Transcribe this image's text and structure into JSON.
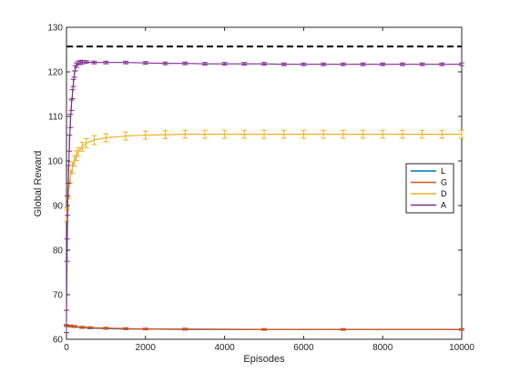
{
  "chart_data": {
    "type": "line",
    "title": "",
    "xlabel": "Episodes",
    "ylabel": "Global Reward",
    "xlim": [
      0,
      10000
    ],
    "ylim": [
      60,
      130
    ],
    "xticks": [
      0,
      2000,
      4000,
      6000,
      8000,
      10000
    ],
    "yticks": [
      60,
      70,
      80,
      90,
      100,
      110,
      120,
      130
    ],
    "grid": false,
    "legend_position": "right",
    "reference_line": {
      "y": 125.7,
      "color": "#000000",
      "style": "dashed"
    },
    "series": [
      {
        "name": "L",
        "color": "#0072BD",
        "x": [
          0,
          100,
          200,
          400,
          600,
          1000,
          1500,
          2000,
          3000,
          5000,
          7000,
          10000
        ],
        "y": [
          63.0,
          62.9,
          62.8,
          62.6,
          62.5,
          62.4,
          62.3,
          62.3,
          62.2,
          62.2,
          62.2,
          62.2
        ],
        "err": 0.15
      },
      {
        "name": "G",
        "color": "#D95319",
        "x": [
          0,
          100,
          200,
          400,
          600,
          1000,
          1500,
          2000,
          3000,
          5000,
          7000,
          10000
        ],
        "y": [
          63.1,
          63.0,
          62.9,
          62.7,
          62.6,
          62.5,
          62.4,
          62.3,
          62.3,
          62.2,
          62.2,
          62.2
        ],
        "err": 0.2
      },
      {
        "name": "D",
        "color": "#EDB120",
        "x": [
          0,
          20,
          50,
          100,
          150,
          200,
          250,
          300,
          400,
          500,
          700,
          1000,
          1500,
          2000,
          2500,
          3000,
          3500,
          4000,
          4500,
          5000,
          5500,
          6000,
          6500,
          7000,
          7500,
          8000,
          8500,
          9000,
          9500,
          10000
        ],
        "y": [
          88.0,
          90.5,
          93.0,
          96.5,
          98.5,
          100.0,
          101.2,
          102.0,
          103.2,
          104.0,
          104.7,
          105.2,
          105.6,
          105.8,
          105.9,
          106.0,
          106.0,
          106.0,
          106.0,
          106.0,
          106.0,
          106.0,
          106.0,
          106.0,
          106.0,
          106.0,
          106.0,
          106.0,
          106.0,
          106.0
        ],
        "err": [
          1.5,
          1.5,
          1.5,
          1.4,
          1.3,
          1.2,
          1.1,
          1.0,
          1.0,
          1.0,
          1.0,
          0.9,
          0.9,
          0.9,
          0.9,
          0.9,
          0.9,
          0.9,
          0.9,
          0.9,
          0.9,
          0.9,
          0.9,
          0.9,
          0.9,
          0.9,
          0.9,
          0.9,
          0.9,
          0.9
        ]
      },
      {
        "name": "A",
        "color": "#7E2F8E",
        "x": [
          0,
          15,
          30,
          50,
          75,
          100,
          125,
          150,
          175,
          200,
          225,
          250,
          300,
          350,
          400,
          500,
          700,
          1000,
          1500,
          2000,
          2500,
          3000,
          3500,
          4000,
          4500,
          5000,
          5500,
          6000,
          6500,
          7000,
          7500,
          8000,
          8500,
          9000,
          9500,
          10000
        ],
        "y": [
          64.0,
          80.0,
          90.0,
          97.0,
          104.0,
          109.0,
          112.5,
          115.0,
          117.5,
          119.5,
          120.8,
          121.5,
          122.0,
          122.1,
          122.2,
          122.2,
          122.1,
          122.1,
          122.1,
          122.0,
          121.9,
          121.9,
          121.8,
          121.8,
          121.8,
          121.8,
          121.7,
          121.7,
          121.7,
          121.7,
          121.7,
          121.7,
          121.7,
          121.7,
          121.7,
          121.7
        ],
        "err": [
          2.5,
          2.5,
          2.2,
          2.0,
          1.8,
          1.5,
          1.2,
          1.0,
          0.8,
          0.7,
          0.6,
          0.5,
          0.4,
          0.4,
          0.4,
          0.3,
          0.3,
          0.3,
          0.3,
          0.3,
          0.3,
          0.3,
          0.3,
          0.3,
          0.3,
          0.3,
          0.3,
          0.3,
          0.3,
          0.3,
          0.3,
          0.3,
          0.3,
          0.3,
          0.3,
          0.3
        ]
      }
    ]
  }
}
